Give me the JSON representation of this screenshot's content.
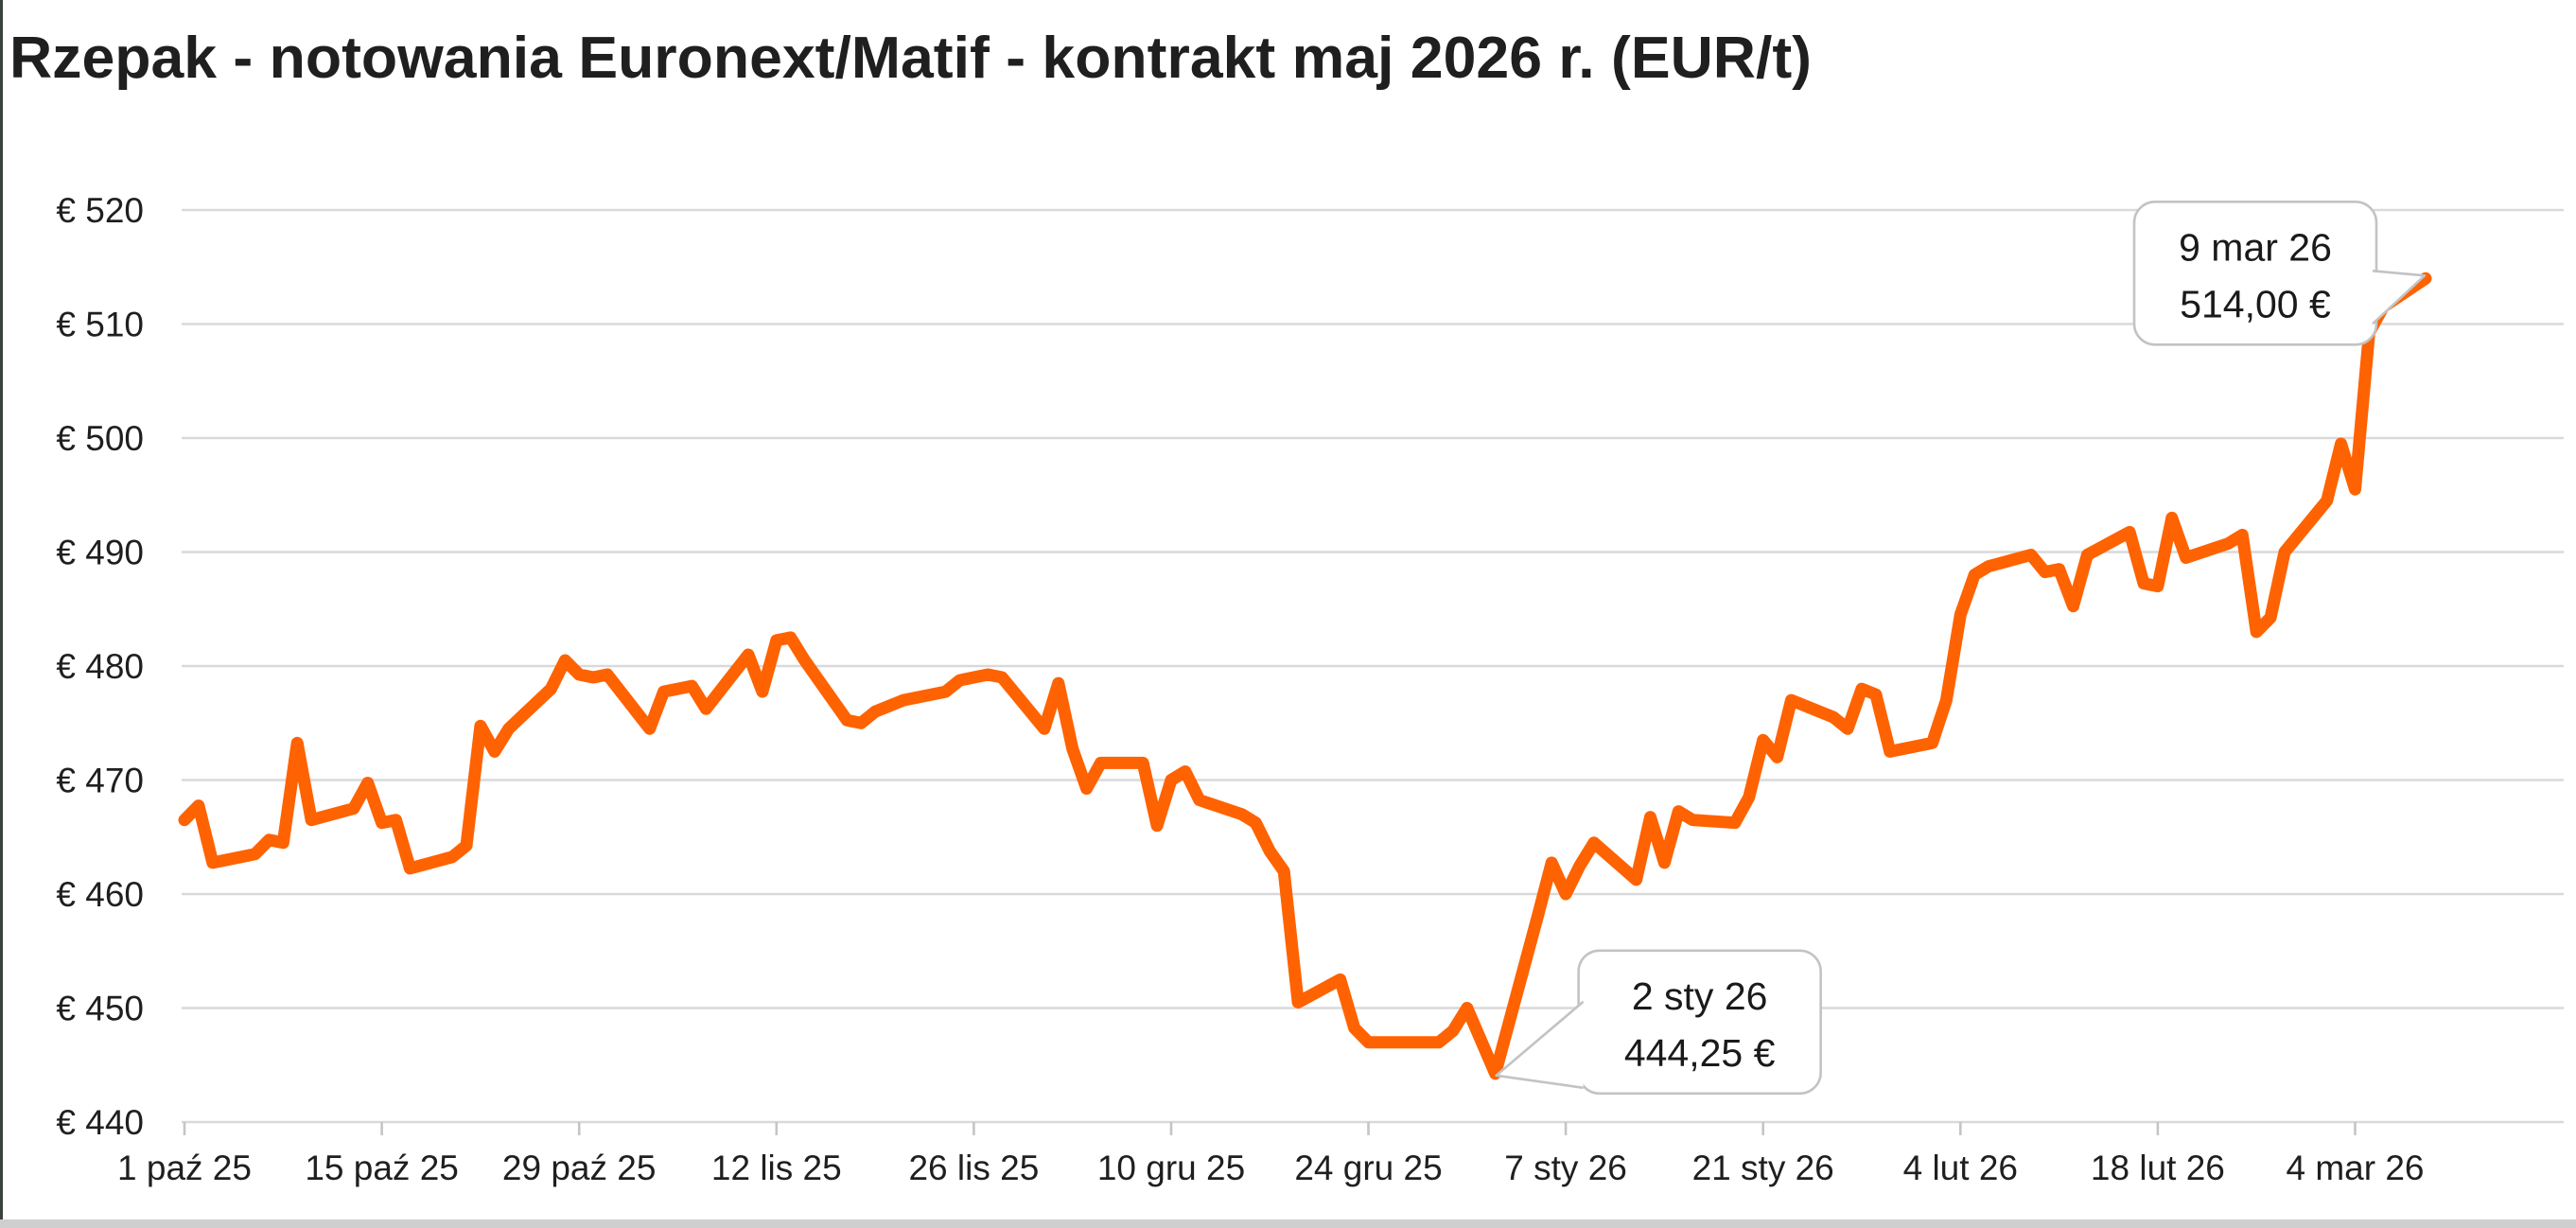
{
  "title": "Rzepak - notowania Euronext/Matif - kontrakt maj 2026 r. (EUR/t)",
  "colors": {
    "line": "#ff6200",
    "grid": "#d9d9d9",
    "axis_tick": "#c5c5c5",
    "text": "#1f1f1f",
    "bubble_border": "#c3c3c3",
    "bubble_fill": "#ffffff"
  },
  "chart_data": {
    "type": "line",
    "title": "Rzepak - notowania Euronext/Matif - kontrakt maj 2026 r. (EUR/t)",
    "xlabel": "",
    "ylabel": "EUR/t",
    "ylim": [
      440,
      520
    ],
    "x_range": [
      "2025-10-01",
      "2026-03-09"
    ],
    "grid": "horizontal",
    "legend_position": "none",
    "y_ticks": [
      {
        "value": 440,
        "label": "€ 440"
      },
      {
        "value": 450,
        "label": "€ 450"
      },
      {
        "value": 460,
        "label": "€ 460"
      },
      {
        "value": 470,
        "label": "€ 470"
      },
      {
        "value": 480,
        "label": "€ 480"
      },
      {
        "value": 490,
        "label": "€ 490"
      },
      {
        "value": 500,
        "label": "€ 500"
      },
      {
        "value": 510,
        "label": "€ 510"
      },
      {
        "value": 520,
        "label": "€ 520"
      }
    ],
    "x_ticks": [
      {
        "date": "2025-10-01",
        "label": "1 paź 25"
      },
      {
        "date": "2025-10-15",
        "label": "15 paź 25"
      },
      {
        "date": "2025-10-29",
        "label": "29 paź 25"
      },
      {
        "date": "2025-11-12",
        "label": "12 lis 25"
      },
      {
        "date": "2025-11-26",
        "label": "26 lis 25"
      },
      {
        "date": "2025-12-10",
        "label": "10 gru 25"
      },
      {
        "date": "2025-12-24",
        "label": "24 gru 25"
      },
      {
        "date": "2026-01-07",
        "label": "7 sty 26"
      },
      {
        "date": "2026-01-21",
        "label": "21 sty 26"
      },
      {
        "date": "2026-02-04",
        "label": "4 lut 26"
      },
      {
        "date": "2026-02-18",
        "label": "18 lut 26"
      },
      {
        "date": "2026-03-04",
        "label": "4 mar 26"
      }
    ],
    "series": [
      {
        "name": "Rzepak Euronext/Matif kontrakt maj 2026 (EUR/t)",
        "color": "#ff6200",
        "points": [
          [
            "2025-10-01",
            466.5
          ],
          [
            "2025-10-02",
            467.75
          ],
          [
            "2025-10-03",
            462.75
          ],
          [
            "2025-10-06",
            463.5
          ],
          [
            "2025-10-07",
            464.75
          ],
          [
            "2025-10-08",
            464.5
          ],
          [
            "2025-10-09",
            473.25
          ],
          [
            "2025-10-10",
            466.5
          ],
          [
            "2025-10-13",
            467.5
          ],
          [
            "2025-10-14",
            469.75
          ],
          [
            "2025-10-15",
            466.25
          ],
          [
            "2025-10-16",
            466.5
          ],
          [
            "2025-10-17",
            462.25
          ],
          [
            "2025-10-20",
            463.25
          ],
          [
            "2025-10-21",
            464.25
          ],
          [
            "2025-10-22",
            474.75
          ],
          [
            "2025-10-23",
            472.5
          ],
          [
            "2025-10-24",
            474.5
          ],
          [
            "2025-10-27",
            478.0
          ],
          [
            "2025-10-28",
            480.5
          ],
          [
            "2025-10-29",
            479.25
          ],
          [
            "2025-10-30",
            479.0
          ],
          [
            "2025-10-31",
            479.25
          ],
          [
            "2025-11-03",
            474.5
          ],
          [
            "2025-11-04",
            477.75
          ],
          [
            "2025-11-05",
            478.0
          ],
          [
            "2025-11-06",
            478.25
          ],
          [
            "2025-11-07",
            476.25
          ],
          [
            "2025-11-10",
            481.0
          ],
          [
            "2025-11-11",
            477.75
          ],
          [
            "2025-11-12",
            482.25
          ],
          [
            "2025-11-13",
            482.5
          ],
          [
            "2025-11-14",
            480.5
          ],
          [
            "2025-11-17",
            475.25
          ],
          [
            "2025-11-18",
            475.0
          ],
          [
            "2025-11-19",
            476.0
          ],
          [
            "2025-11-20",
            476.5
          ],
          [
            "2025-11-21",
            477.0
          ],
          [
            "2025-11-24",
            477.75
          ],
          [
            "2025-11-25",
            478.75
          ],
          [
            "2025-11-26",
            479.0
          ],
          [
            "2025-11-27",
            479.25
          ],
          [
            "2025-11-28",
            479.0
          ],
          [
            "2025-12-01",
            474.5
          ],
          [
            "2025-12-02",
            478.5
          ],
          [
            "2025-12-03",
            472.75
          ],
          [
            "2025-12-04",
            469.25
          ],
          [
            "2025-12-05",
            471.5
          ],
          [
            "2025-12-08",
            471.5
          ],
          [
            "2025-12-09",
            466.0
          ],
          [
            "2025-12-10",
            470.0
          ],
          [
            "2025-12-11",
            470.75
          ],
          [
            "2025-12-12",
            468.25
          ],
          [
            "2025-12-15",
            467.0
          ],
          [
            "2025-12-16",
            466.25
          ],
          [
            "2025-12-17",
            463.75
          ],
          [
            "2025-12-18",
            462.0
          ],
          [
            "2025-12-19",
            450.5
          ],
          [
            "2025-12-22",
            452.5
          ],
          [
            "2025-12-23",
            448.25
          ],
          [
            "2025-12-24",
            447.0
          ],
          [
            "2025-12-29",
            447.0
          ],
          [
            "2025-12-30",
            448.0
          ],
          [
            "2025-12-31",
            450.0
          ],
          [
            "2026-01-02",
            444.25
          ],
          [
            "2026-01-05",
            458.0
          ],
          [
            "2026-01-06",
            462.75
          ],
          [
            "2026-01-07",
            460.0
          ],
          [
            "2026-01-08",
            462.5
          ],
          [
            "2026-01-09",
            464.5
          ],
          [
            "2026-01-12",
            461.25
          ],
          [
            "2026-01-13",
            466.75
          ],
          [
            "2026-01-14",
            462.75
          ],
          [
            "2026-01-15",
            467.25
          ],
          [
            "2026-01-16",
            466.5
          ],
          [
            "2026-01-19",
            466.25
          ],
          [
            "2026-01-20",
            468.5
          ],
          [
            "2026-01-21",
            473.5
          ],
          [
            "2026-01-22",
            472.0
          ],
          [
            "2026-01-23",
            477.0
          ],
          [
            "2026-01-26",
            475.5
          ],
          [
            "2026-01-27",
            474.5
          ],
          [
            "2026-01-28",
            478.0
          ],
          [
            "2026-01-29",
            477.5
          ],
          [
            "2026-01-30",
            472.5
          ],
          [
            "2026-02-02",
            473.25
          ],
          [
            "2026-02-03",
            477.0
          ],
          [
            "2026-02-04",
            484.5
          ],
          [
            "2026-02-05",
            488.0
          ],
          [
            "2026-02-06",
            488.75
          ],
          [
            "2026-02-09",
            489.75
          ],
          [
            "2026-02-10",
            488.25
          ],
          [
            "2026-02-11",
            488.5
          ],
          [
            "2026-02-12",
            485.25
          ],
          [
            "2026-02-13",
            489.75
          ],
          [
            "2026-02-16",
            491.75
          ],
          [
            "2026-02-17",
            487.25
          ],
          [
            "2026-02-18",
            487.0
          ],
          [
            "2026-02-19",
            493.0
          ],
          [
            "2026-02-20",
            489.5
          ],
          [
            "2026-02-23",
            490.75
          ],
          [
            "2026-02-24",
            491.5
          ],
          [
            "2026-02-25",
            483.0
          ],
          [
            "2026-02-26",
            484.25
          ],
          [
            "2026-02-27",
            490.0
          ],
          [
            "2026-03-02",
            494.5
          ],
          [
            "2026-03-03",
            499.5
          ],
          [
            "2026-03-04",
            495.5
          ],
          [
            "2026-03-05",
            509.25
          ],
          [
            "2026-03-06",
            511.5
          ],
          [
            "2026-03-09",
            514.0
          ]
        ]
      }
    ],
    "annotations": [
      {
        "date": "2026-03-09",
        "value": 514.0,
        "text_lines": [
          "9 mar 26",
          "514,00 €"
        ],
        "pointer_direction": "right"
      },
      {
        "date": "2026-01-02",
        "value": 444.25,
        "text_lines": [
          "2 sty 26",
          "444,25 €"
        ],
        "pointer_direction": "left"
      }
    ]
  }
}
